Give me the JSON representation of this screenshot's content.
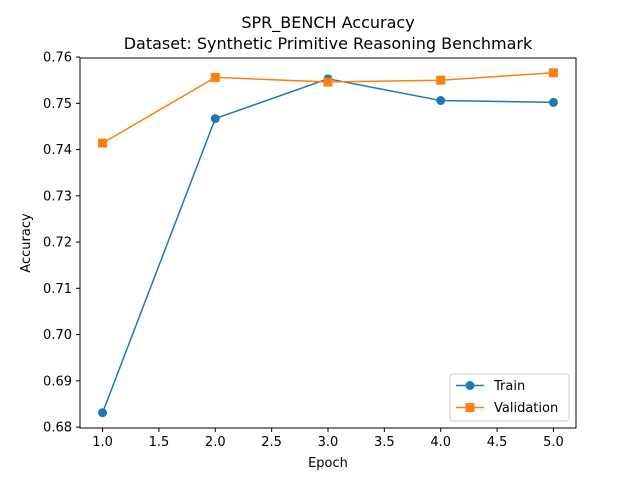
{
  "chart_data": {
    "type": "line",
    "title": "SPR_BENCH Accuracy",
    "subtitle": "Dataset: Synthetic Primitive Reasoning Benchmark",
    "xlabel": "Epoch",
    "ylabel": "Accuracy",
    "x": [
      1.0,
      2.0,
      3.0,
      4.0,
      5.0
    ],
    "xlim": [
      0.8,
      5.2
    ],
    "ylim": [
      0.6798,
      0.7598
    ],
    "x_ticks": [
      1.0,
      1.5,
      2.0,
      2.5,
      3.0,
      3.5,
      4.0,
      4.5,
      5.0
    ],
    "x_tick_labels": [
      "1.0",
      "1.5",
      "2.0",
      "2.5",
      "3.0",
      "3.5",
      "4.0",
      "4.5",
      "5.0"
    ],
    "y_ticks": [
      0.68,
      0.69,
      0.7,
      0.71,
      0.72,
      0.73,
      0.74,
      0.75,
      0.76
    ],
    "y_tick_labels": [
      "0.68",
      "0.69",
      "0.70",
      "0.71",
      "0.72",
      "0.73",
      "0.74",
      "0.75",
      "0.76"
    ],
    "grid": false,
    "legend_position": "lower-right",
    "series": [
      {
        "name": "Train",
        "marker": "circle",
        "color": "#1f77b4",
        "values": [
          0.6831,
          0.7467,
          0.7553,
          0.7506,
          0.7502
        ]
      },
      {
        "name": "Validation",
        "marker": "square",
        "color": "#ff7f0e",
        "values": [
          0.7414,
          0.7556,
          0.7546,
          0.755,
          0.7566
        ]
      }
    ]
  }
}
